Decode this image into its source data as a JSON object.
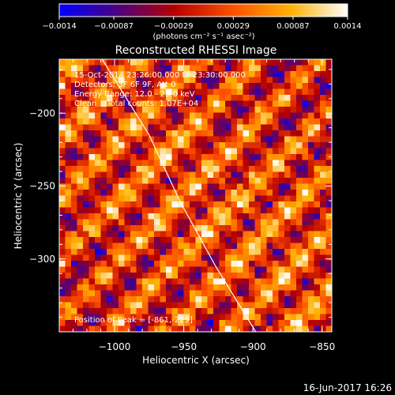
{
  "chart_data": {
    "type": "heatmap",
    "title": "Reconstructed RHESSI Image",
    "xlabel": "Heliocentric X (arcsec)",
    "ylabel": "Heliocentric Y (arcsec)",
    "xlim": [
      -1040,
      -843
    ],
    "ylim": [
      -350,
      -163
    ],
    "x_ticks": [
      -1000,
      -950,
      -900,
      -850
    ],
    "y_ticks": [
      -200,
      -250,
      -300
    ],
    "x_tick_labels": [
      "−1000",
      "−950",
      "−900",
      "−850"
    ],
    "y_tick_labels": [
      "−200",
      "−250",
      "−300"
    ],
    "colorbar": {
      "min": -0.0014,
      "max": 0.0014,
      "tick_values": [
        -0.0014,
        -0.00087,
        -0.00029,
        0.00029,
        0.00087,
        0.0014
      ],
      "tick_labels": [
        "−0.0014",
        "−0.00087",
        "−0.00029",
        "0.00029",
        "0.00087",
        "0.0014"
      ],
      "unit_label": "(photons cm⁻² s⁻¹ asec⁻²)",
      "colors": [
        "#0000ff",
        "#4b0082",
        "#b40000",
        "#ff5000",
        "#ffb000",
        "#ffffff"
      ]
    },
    "annotations": [
      "15-Oct-2014 23:26:00.000 to 23:30:00.000",
      "Detectors: 3F 6F 9F, Att 0",
      "Energy Range: 12.0 - 25.0 keV",
      "Clean    Total counts: 1.07E+04"
    ],
    "peak_label": "Position of Peak = [-861,-229]",
    "limb_curve": [
      [
        -1009,
        -163
      ],
      [
        -975,
        -215
      ],
      [
        -953,
        -260
      ],
      [
        -927,
        -305
      ],
      [
        -898,
        -350
      ]
    ]
  },
  "footer": {
    "timestamp": "16-Jun-2017 16:26"
  }
}
